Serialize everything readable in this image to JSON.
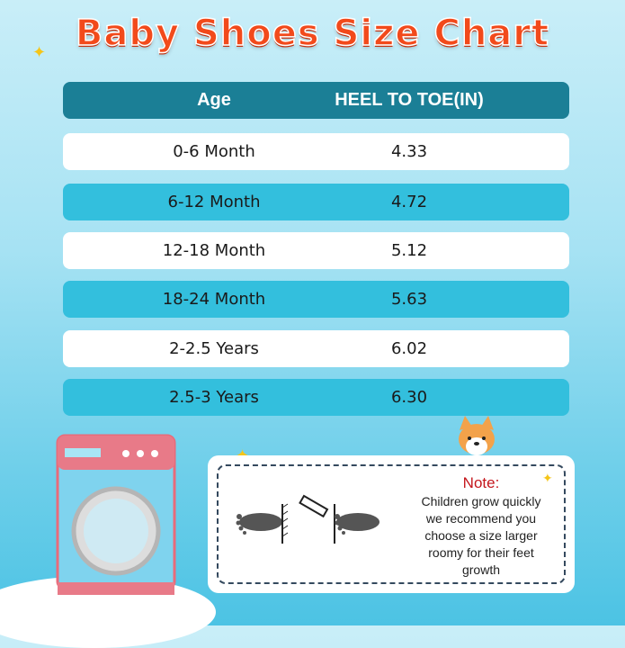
{
  "title": "Baby Shoes Size Chart",
  "table": {
    "headers": [
      "Age",
      "HEEL TO TOE(IN)"
    ],
    "rows": [
      {
        "age": "0-6 Month",
        "size": "4.33"
      },
      {
        "age": "6-12 Month",
        "size": "4.72"
      },
      {
        "age": "12-18 Month",
        "size": "5.12"
      },
      {
        "age": "18-24 Month",
        "size": "5.63"
      },
      {
        "age": "2-2.5 Years",
        "size": "6.02"
      },
      {
        "age": "2.5-3 Years",
        "size": "6.30"
      }
    ]
  },
  "note": {
    "title": "Note:",
    "lines": [
      "Children grow quickly",
      "we recommend you",
      "choose a size larger",
      "roomy for their feet",
      "growth"
    ]
  },
  "colors": {
    "title": "#f24a1b",
    "header": "#1b7f96",
    "row_alt": "#33bfdd",
    "note_title": "#c4161c"
  }
}
